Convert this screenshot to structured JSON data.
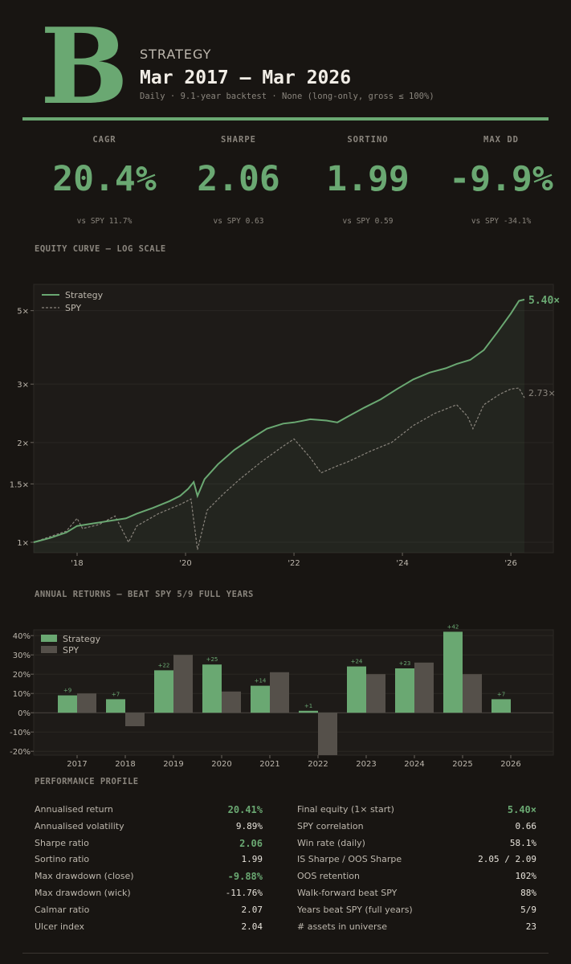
{
  "header": {
    "grade": "B",
    "kicker": "STRATEGY",
    "period": "Mar 2017 – Mar 2026",
    "subline": "Daily · 9.1-year backtest · None (long-only, gross ≤ 100%)"
  },
  "kpis": [
    {
      "label": "CAGR",
      "value": "20.4%",
      "compare": "vs SPY 11.7%"
    },
    {
      "label": "SHARPE",
      "value": "2.06",
      "compare": "vs SPY 0.63"
    },
    {
      "label": "SORTINO",
      "value": "1.99",
      "compare": "vs SPY 0.59"
    },
    {
      "label": "MAX DD",
      "value": "-9.9%",
      "compare": "vs SPY -34.1%"
    }
  ],
  "colors": {
    "accent": "#6aa872",
    "spy": "#8a857d",
    "spy_bar": "#55504a",
    "background": "#181512",
    "panel": "#1e1b18"
  },
  "chart_data": [
    {
      "type": "line",
      "title": "EQUITY CURVE — LOG SCALE",
      "y_scale": "log",
      "ylim": [
        0.93,
        6.0
      ],
      "xlim": [
        2017.2,
        2026.55
      ],
      "y_ticks": [
        1,
        1.5,
        2,
        3,
        5
      ],
      "y_tick_labels": [
        "1×",
        "1.5×",
        "2×",
        "3×",
        "5×"
      ],
      "x_ticks": [
        2018,
        2020,
        2022,
        2024,
        2026
      ],
      "x_tick_labels": [
        "'18",
        "'20",
        "'22",
        "'24",
        "'26"
      ],
      "legend": "top-left",
      "series": [
        {
          "name": "Strategy",
          "style": "solid",
          "end_label": "5.40×",
          "x": [
            2017.2,
            2017.5,
            2017.8,
            2018.0,
            2018.3,
            2018.6,
            2018.9,
            2019.1,
            2019.4,
            2019.7,
            2019.9,
            2020.05,
            2020.15,
            2020.22,
            2020.35,
            2020.6,
            2020.9,
            2021.2,
            2021.5,
            2021.8,
            2022.0,
            2022.3,
            2022.6,
            2022.8,
            2023.0,
            2023.3,
            2023.6,
            2023.9,
            2024.2,
            2024.5,
            2024.8,
            2025.0,
            2025.25,
            2025.5,
            2025.75,
            2026.0,
            2026.15,
            2026.25
          ],
          "y": [
            1.0,
            1.03,
            1.07,
            1.12,
            1.14,
            1.16,
            1.18,
            1.22,
            1.27,
            1.33,
            1.38,
            1.45,
            1.52,
            1.38,
            1.55,
            1.72,
            1.9,
            2.05,
            2.2,
            2.28,
            2.3,
            2.35,
            2.33,
            2.3,
            2.4,
            2.55,
            2.7,
            2.9,
            3.1,
            3.25,
            3.35,
            3.45,
            3.55,
            3.8,
            4.3,
            4.9,
            5.35,
            5.4
          ]
        },
        {
          "name": "SPY",
          "style": "dashed",
          "end_label": "2.73×",
          "x": [
            2017.2,
            2017.5,
            2017.8,
            2018.0,
            2018.1,
            2018.4,
            2018.7,
            2018.95,
            2019.1,
            2019.5,
            2019.9,
            2020.1,
            2020.22,
            2020.4,
            2020.7,
            2021.0,
            2021.4,
            2021.8,
            2022.0,
            2022.3,
            2022.5,
            2022.8,
            2023.0,
            2023.4,
            2023.8,
            2024.2,
            2024.6,
            2025.0,
            2025.2,
            2025.3,
            2025.5,
            2025.8,
            2026.0,
            2026.15,
            2026.25
          ],
          "y": [
            1.0,
            1.04,
            1.08,
            1.18,
            1.1,
            1.13,
            1.2,
            1.0,
            1.12,
            1.22,
            1.3,
            1.35,
            0.95,
            1.25,
            1.4,
            1.55,
            1.75,
            1.95,
            2.05,
            1.8,
            1.62,
            1.7,
            1.75,
            1.88,
            2.0,
            2.25,
            2.45,
            2.6,
            2.4,
            2.2,
            2.6,
            2.8,
            2.9,
            2.92,
            2.73
          ]
        }
      ]
    },
    {
      "type": "bar",
      "title": "ANNUAL RETURNS — BEAT SPY 5/9 FULL YEARS",
      "categories": [
        "2017",
        "2018",
        "2019",
        "2020",
        "2021",
        "2022",
        "2023",
        "2024",
        "2025",
        "2026"
      ],
      "ylim": [
        -22,
        43
      ],
      "y_ticks": [
        -20,
        -10,
        0,
        10,
        20,
        30,
        40
      ],
      "y_tick_labels": [
        "-20%",
        "-10%",
        "0%",
        "10%",
        "20%",
        "30%",
        "40%"
      ],
      "legend": "top-left",
      "series": [
        {
          "name": "Strategy",
          "values": [
            9,
            7,
            22,
            25,
            14,
            1,
            24,
            23,
            42,
            7
          ],
          "labels": [
            "+9",
            "+7",
            "+22",
            "+25",
            "+14",
            "+1",
            "+24",
            "+23",
            "+42",
            "+7"
          ]
        },
        {
          "name": "SPY",
          "values": [
            10,
            -7,
            30,
            11,
            21,
            -22,
            20,
            26,
            20,
            null
          ]
        }
      ]
    }
  ],
  "performance": {
    "title": "PERFORMANCE PROFILE",
    "left": [
      {
        "label": "Annualised return",
        "value": "20.41%",
        "hi": true
      },
      {
        "label": "Annualised volatility",
        "value": "9.89%",
        "hi": false
      },
      {
        "label": "Sharpe ratio",
        "value": "2.06",
        "hi": true
      },
      {
        "label": "Sortino ratio",
        "value": "1.99",
        "hi": false
      },
      {
        "label": "Max drawdown (close)",
        "value": "-9.88%",
        "hi": true
      },
      {
        "label": "Max drawdown (wick)",
        "value": "-11.76%",
        "hi": false
      },
      {
        "label": "Calmar ratio",
        "value": "2.07",
        "hi": false
      },
      {
        "label": "Ulcer index",
        "value": "2.04",
        "hi": false
      }
    ],
    "right": [
      {
        "label": "Final equity (1× start)",
        "value": "5.40×",
        "hi": true
      },
      {
        "label": "SPY correlation",
        "value": "0.66",
        "hi": false
      },
      {
        "label": "Win rate (daily)",
        "value": "58.1%",
        "hi": false
      },
      {
        "label": "IS Sharpe / OOS Sharpe",
        "value": "2.05 / 2.09",
        "hi": false
      },
      {
        "label": "OOS retention",
        "value": "102%",
        "hi": false
      },
      {
        "label": "Walk-forward beat SPY",
        "value": "88%",
        "hi": false
      },
      {
        "label": "Years beat SPY (full years)",
        "value": "5/9",
        "hi": false
      },
      {
        "label": "# assets in universe",
        "value": "23",
        "hi": false
      }
    ]
  }
}
